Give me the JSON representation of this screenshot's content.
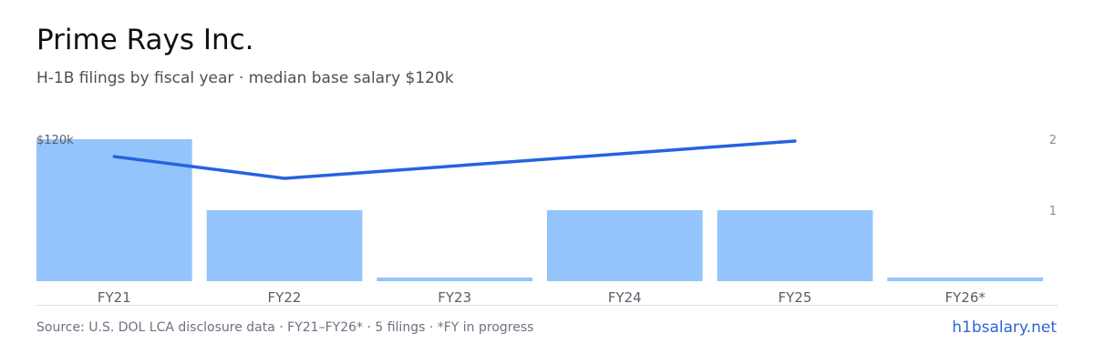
{
  "header": {
    "title": "Prime Rays Inc.",
    "subtitle": "H-1B filings by fiscal year · median base salary $120k"
  },
  "footer": {
    "source": "Source: U.S. DOL LCA disclosure data · FY21–FY26* · 5 filings · *FY in progress",
    "site": "h1bsalary.net"
  },
  "colors": {
    "bar": "#93c4fb",
    "line": "#2563e0",
    "axis": "#dcdfe4",
    "tick": "#8a8f98",
    "category": "#5a6069"
  },
  "chart_data": {
    "type": "bar",
    "categories": [
      "FY21",
      "FY22",
      "FY23",
      "FY24",
      "FY25",
      "FY26*"
    ],
    "series": [
      {
        "kind": "bar",
        "axis": "right",
        "values": [
          2,
          1,
          0,
          1,
          1,
          0
        ]
      },
      {
        "kind": "line",
        "axis": "left",
        "values": [
          108000,
          91000,
          null,
          null,
          120000,
          null
        ]
      }
    ],
    "y_left": {
      "tick_labels": [
        "$120k"
      ],
      "tick_values": [
        120000
      ]
    },
    "y_right": {
      "range": [
        0,
        2
      ],
      "ticks": [
        1,
        2
      ]
    },
    "grid": false,
    "legend": false
  }
}
